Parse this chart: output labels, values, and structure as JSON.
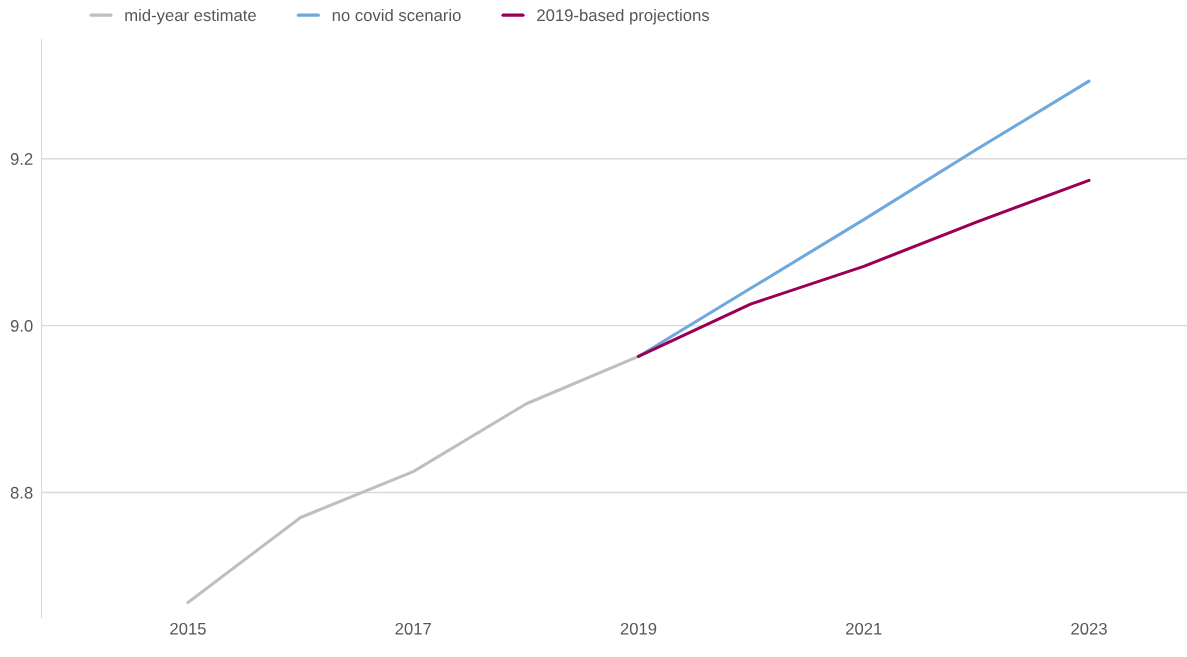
{
  "chart_data": {
    "type": "line",
    "series": [
      {
        "name": "mid-year estimate",
        "color": "#bfbfbf",
        "x": [
          2015,
          2016,
          2017,
          2018,
          2019
        ],
        "values": [
          8.668,
          8.77,
          8.825,
          8.906,
          8.963
        ]
      },
      {
        "name": "no covid scenario",
        "color": "#6fa8dc",
        "x": [
          2019,
          2020,
          2021,
          2022,
          2023
        ],
        "values": [
          8.963,
          9.045,
          9.127,
          9.211,
          9.293
        ]
      },
      {
        "name": "2019-based projections",
        "color": "#990055",
        "x": [
          2019,
          2020,
          2021,
          2022,
          2023
        ],
        "values": [
          8.963,
          9.026,
          9.071,
          9.124,
          9.174
        ]
      }
    ],
    "xlim": [
      2013.7,
      2023.87
    ],
    "xticks": [
      2015,
      2017,
      2019,
      2021,
      2023
    ],
    "ylim": [
      8.65,
      9.343
    ],
    "yticks": [
      {
        "value": 8.8,
        "label": "8.8"
      },
      {
        "value": 9.0,
        "label": "9.0"
      },
      {
        "value": 9.2,
        "label": "9.2"
      }
    ],
    "grid": "y",
    "legend": "top left",
    "marker": "none",
    "line_style": "solid"
  }
}
